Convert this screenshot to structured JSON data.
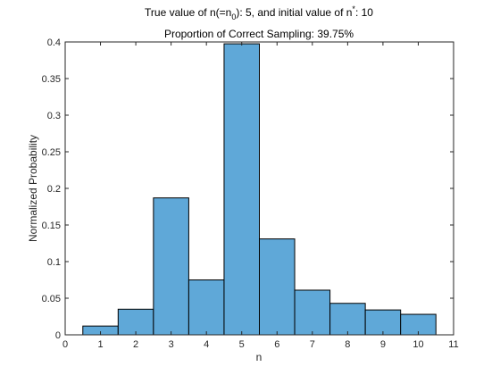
{
  "chart_data": {
    "type": "bar",
    "title_line1": {
      "prefix": "True value of n(=n",
      "sub": "0",
      "mid": "): 5, and initial value of n",
      "sup": "*",
      "suffix": ": 10"
    },
    "title_line2": "Proportion of Correct Sampling: 39.75%",
    "xlabel": "n",
    "ylabel": "Normalized Probability",
    "xlim": [
      0,
      11
    ],
    "ylim": [
      0,
      0.4
    ],
    "xticks": [
      "0",
      "1",
      "2",
      "3",
      "4",
      "5",
      "6",
      "7",
      "8",
      "9",
      "10",
      "11"
    ],
    "yticks": [
      "0",
      "0.05",
      "0.1",
      "0.15",
      "0.2",
      "0.25",
      "0.3",
      "0.35",
      "0.4"
    ],
    "bin_width": 1,
    "categories": [
      1,
      2,
      3,
      4,
      5,
      6,
      7,
      8,
      9,
      10
    ],
    "values": [
      0.012,
      0.035,
      0.187,
      0.075,
      0.3975,
      0.131,
      0.061,
      0.043,
      0.034,
      0.028
    ],
    "bar_color": "#5fa8d8",
    "edge_color": "#000000"
  }
}
